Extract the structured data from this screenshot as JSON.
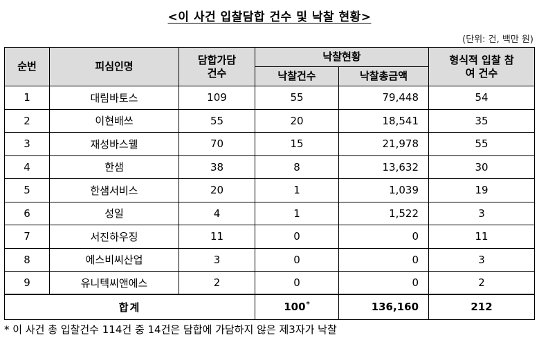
{
  "title": "<이 사건 입찰담합 건수 및 낙찰 현황>",
  "unit_note": "(단위: 건, 백만 원)",
  "headers": {
    "seq": "순번",
    "respondent": "피심인명",
    "collusion_line1": "담합가담",
    "collusion_line2": "건수",
    "award_status": "낙찰현황",
    "award_count": "낙찰건수",
    "award_total": "낙찰총금액",
    "formal_line1": "형식적 입찰 참",
    "formal_line2": "여 건수"
  },
  "rows": [
    {
      "seq": "1",
      "name": "대림바토스",
      "collusion": "109",
      "awards": "55",
      "amount": "79,448",
      "formal": "54"
    },
    {
      "seq": "2",
      "name": "이현배쓰",
      "collusion": "55",
      "awards": "20",
      "amount": "18,541",
      "formal": "35"
    },
    {
      "seq": "3",
      "name": "재성바스웰",
      "collusion": "70",
      "awards": "15",
      "amount": "21,978",
      "formal": "55"
    },
    {
      "seq": "4",
      "name": "한샘",
      "collusion": "38",
      "awards": "8",
      "amount": "13,632",
      "formal": "30"
    },
    {
      "seq": "5",
      "name": "한샘서비스",
      "collusion": "20",
      "awards": "1",
      "amount": "1,039",
      "formal": "19"
    },
    {
      "seq": "6",
      "name": "성일",
      "collusion": "4",
      "awards": "1",
      "amount": "1,522",
      "formal": "3"
    },
    {
      "seq": "7",
      "name": "서진하우징",
      "collusion": "11",
      "awards": "0",
      "amount": "0",
      "formal": "11"
    },
    {
      "seq": "8",
      "name": "에스비씨산업",
      "collusion": "3",
      "awards": "0",
      "amount": "0",
      "formal": "3"
    },
    {
      "seq": "9",
      "name": "유니텍씨앤에스",
      "collusion": "2",
      "awards": "0",
      "amount": "0",
      "formal": "2"
    }
  ],
  "total": {
    "label": "합계",
    "awards": "100",
    "awards_mark": "*",
    "amount": "136,160",
    "formal": "212"
  },
  "footnote": "* 이 사건 총 입찰건수 114건 중 14건은 담합에 가담하지 않은 제3자가 낙찰"
}
